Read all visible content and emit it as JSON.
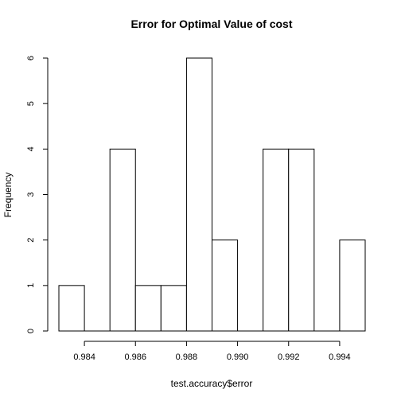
{
  "chart_data": {
    "type": "bar",
    "subtype": "histogram",
    "title": "Error for Optimal Value of cost",
    "xlabel": "test.accuracy$error",
    "ylabel": "Frequency",
    "bins": [
      {
        "start": 0.983,
        "end": 0.984,
        "count": 1
      },
      {
        "start": 0.984,
        "end": 0.985,
        "count": 0
      },
      {
        "start": 0.985,
        "end": 0.986,
        "count": 4
      },
      {
        "start": 0.986,
        "end": 0.987,
        "count": 1
      },
      {
        "start": 0.987,
        "end": 0.988,
        "count": 1
      },
      {
        "start": 0.988,
        "end": 0.989,
        "count": 6
      },
      {
        "start": 0.989,
        "end": 0.99,
        "count": 2
      },
      {
        "start": 0.99,
        "end": 0.991,
        "count": 0
      },
      {
        "start": 0.991,
        "end": 0.992,
        "count": 4
      },
      {
        "start": 0.992,
        "end": 0.993,
        "count": 4
      },
      {
        "start": 0.993,
        "end": 0.994,
        "count": 0
      },
      {
        "start": 0.994,
        "end": 0.995,
        "count": 2
      }
    ],
    "xticks": [
      0.984,
      0.986,
      0.988,
      0.99,
      0.992,
      0.994
    ],
    "xtick_labels": [
      "0.984",
      "0.986",
      "0.988",
      "0.990",
      "0.992",
      "0.994"
    ],
    "yticks": [
      0,
      1,
      2,
      3,
      4,
      5,
      6
    ],
    "ytick_labels": [
      "0",
      "1",
      "2",
      "3",
      "4",
      "5",
      "6"
    ],
    "xlim": [
      0.983,
      0.995
    ],
    "ylim": [
      0,
      6
    ],
    "grid": false,
    "legend": "none"
  }
}
